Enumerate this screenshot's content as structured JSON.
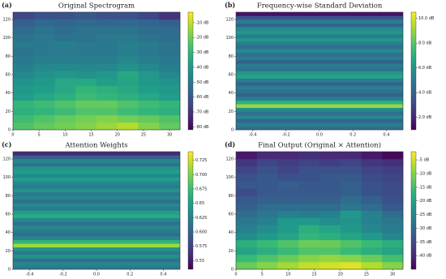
{
  "chart_data": [
    {
      "type": "heatmap",
      "panel": "(a)",
      "title": "Original Spectrogram",
      "xlim": [
        0,
        32
      ],
      "ylim": [
        0,
        128
      ],
      "xticks": [
        0,
        5,
        10,
        15,
        20,
        25,
        30
      ],
      "yticks": [
        0,
        20,
        40,
        60,
        80,
        100,
        120
      ],
      "clim": [
        -82,
        -3
      ],
      "cticks": [
        {
          "value": -10,
          "label": "-10 dB"
        },
        {
          "value": -20,
          "label": "-20 dB"
        },
        {
          "value": -30,
          "label": "-30 dB"
        },
        {
          "value": -40,
          "label": "-40 dB"
        },
        {
          "value": -50,
          "label": "-50 dB"
        },
        {
          "value": -60,
          "label": "-60 dB"
        },
        {
          "value": -70,
          "label": "-70 dB"
        },
        {
          "value": -80,
          "label": "-80 dB"
        }
      ],
      "values": [
        [
          -25,
          -22,
          -20,
          -18,
          -15,
          -12,
          -18,
          -22
        ],
        [
          -28,
          -25,
          -22,
          -20,
          -18,
          -20,
          -22,
          -25
        ],
        [
          -32,
          -30,
          -28,
          -25,
          -25,
          -28,
          -30,
          -32
        ],
        [
          -30,
          -28,
          -25,
          -22,
          -22,
          -25,
          -28,
          -30
        ],
        [
          -38,
          -35,
          -32,
          -28,
          -30,
          -32,
          -35,
          -38
        ],
        [
          -40,
          -38,
          -35,
          -30,
          -32,
          -35,
          -38,
          -40
        ],
        [
          -42,
          -40,
          -35,
          -35,
          -38,
          -36,
          -40,
          -42
        ],
        [
          -45,
          -42,
          -40,
          -42,
          -40,
          -35,
          -40,
          -45
        ],
        [
          -48,
          -45,
          -45,
          -45,
          -45,
          -42,
          -45,
          -48
        ],
        [
          -50,
          -48,
          -48,
          -48,
          -48,
          -45,
          -48,
          -50
        ],
        [
          -52,
          -50,
          -50,
          -50,
          -50,
          -48,
          -50,
          -52
        ],
        [
          -50,
          -50,
          -48,
          -50,
          -50,
          -48,
          -50,
          -52
        ],
        [
          -52,
          -50,
          -52,
          -52,
          -50,
          -50,
          -52,
          -54
        ],
        [
          -55,
          -52,
          -54,
          -52,
          -52,
          -52,
          -54,
          -55
        ],
        [
          -58,
          -55,
          -56,
          -55,
          -56,
          -55,
          -56,
          -58
        ],
        [
          -65,
          -62,
          -62,
          -60,
          -62,
          -62,
          -65,
          -70
        ]
      ]
    },
    {
      "type": "heatmap",
      "panel": "(b)",
      "title": "Frequency-wise Standard Deviation",
      "xlim": [
        -0.5,
        0.5
      ],
      "ylim": [
        0,
        128
      ],
      "xticks": [
        -0.4,
        -0.2,
        {
          "value": 0,
          "label": "0.0"
        },
        0.2,
        0.4
      ],
      "yticks": [
        0,
        20,
        40,
        60,
        80,
        100,
        120
      ],
      "clim": [
        1,
        10.5
      ],
      "cticks": [
        {
          "value": 2,
          "label": "2.0 dB"
        },
        {
          "value": 4,
          "label": "4.0 dB"
        },
        {
          "value": 6,
          "label": "6.0 dB"
        },
        {
          "value": 8,
          "label": "8.0 dB"
        },
        {
          "value": 10,
          "label": "10.0 dB"
        }
      ],
      "values": [
        4.5,
        5,
        4,
        5.5,
        4.5,
        5.5,
        9,
        7,
        5,
        4,
        4.5,
        5,
        4,
        5,
        6.5,
        6,
        4.5,
        5,
        4,
        5,
        4.5,
        5.5,
        4.5,
        5,
        6,
        5,
        6,
        5.5,
        4,
        5,
        3.5,
        1.5
      ]
    },
    {
      "type": "heatmap",
      "panel": "(c)",
      "title": "Attention Weights",
      "xlim": [
        -0.5,
        0.5
      ],
      "ylim": [
        0,
        128
      ],
      "xticks": [
        -0.4,
        -0.2,
        {
          "value": 0,
          "label": "0.0"
        },
        0.2,
        0.4
      ],
      "yticks": [
        0,
        20,
        40,
        60,
        80,
        100,
        120
      ],
      "clim": [
        0.535,
        0.74
      ],
      "cticks": [
        0.55,
        0.575,
        {
          "value": 0.6,
          "label": "0.600"
        },
        0.625,
        0.65,
        0.675,
        {
          "value": 0.7,
          "label": "0.700"
        },
        0.725
      ],
      "values": [
        0.62,
        0.63,
        0.61,
        0.64,
        0.62,
        0.64,
        0.71,
        0.67,
        0.63,
        0.61,
        0.62,
        0.63,
        0.61,
        0.63,
        0.66,
        0.65,
        0.62,
        0.63,
        0.61,
        0.63,
        0.62,
        0.64,
        0.62,
        0.63,
        0.65,
        0.63,
        0.65,
        0.64,
        0.61,
        0.63,
        0.6,
        0.56
      ]
    },
    {
      "type": "heatmap",
      "panel": "(d)",
      "title": "Final Output (Original × Attention)",
      "xlim": [
        0,
        32
      ],
      "ylim": [
        0,
        128
      ],
      "xticks": [
        0,
        5,
        10,
        15,
        20,
        25,
        30
      ],
      "yticks": [
        0,
        20,
        40,
        60,
        80,
        100,
        120
      ],
      "clim": [
        -45,
        -2
      ],
      "cticks": [
        {
          "value": -5,
          "label": "-5 dB"
        },
        {
          "value": -10,
          "label": "-10 dB"
        },
        {
          "value": -15,
          "label": "-15 dB"
        },
        {
          "value": -20,
          "label": "-20 dB"
        },
        {
          "value": -25,
          "label": "-25 dB"
        },
        {
          "value": -30,
          "label": "-30 dB"
        },
        {
          "value": -35,
          "label": "-35 dB"
        },
        {
          "value": -40,
          "label": "-40 dB"
        }
      ],
      "values": [
        [
          -12,
          -10,
          -8,
          -6,
          -5,
          -4,
          -7,
          -10
        ],
        [
          -16,
          -14,
          -12,
          -10,
          -9,
          -10,
          -12,
          -15
        ],
        [
          -20,
          -18,
          -16,
          -14,
          -14,
          -16,
          -18,
          -20
        ],
        [
          -18,
          -16,
          -14,
          -12,
          -12,
          -14,
          -16,
          -18
        ],
        [
          -24,
          -22,
          -20,
          -17,
          -18,
          -20,
          -22,
          -25
        ],
        [
          -26,
          -24,
          -22,
          -18,
          -20,
          -22,
          -25,
          -27
        ],
        [
          -28,
          -26,
          -22,
          -22,
          -24,
          -23,
          -26,
          -28
        ],
        [
          -30,
          -28,
          -26,
          -27,
          -26,
          -22,
          -26,
          -30
        ],
        [
          -32,
          -30,
          -30,
          -30,
          -30,
          -28,
          -30,
          -33
        ],
        [
          -33,
          -32,
          -32,
          -32,
          -32,
          -30,
          -32,
          -34
        ],
        [
          -35,
          -33,
          -33,
          -33,
          -33,
          -32,
          -34,
          -35
        ],
        [
          -33,
          -33,
          -32,
          -33,
          -33,
          -32,
          -34,
          -35
        ],
        [
          -34,
          -33,
          -34,
          -34,
          -33,
          -33,
          -35,
          -36
        ],
        [
          -36,
          -34,
          -36,
          -34,
          -34,
          -34,
          -36,
          -37
        ],
        [
          -38,
          -36,
          -37,
          -36,
          -37,
          -36,
          -38,
          -39
        ],
        [
          -42,
          -40,
          -40,
          -39,
          -40,
          -40,
          -42,
          -44
        ]
      ]
    }
  ]
}
